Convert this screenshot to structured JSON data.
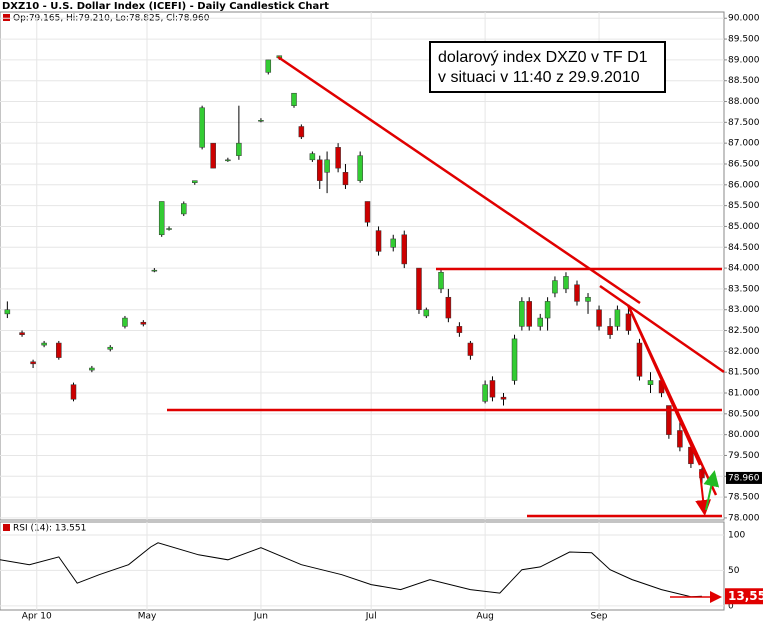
{
  "chart_data": {
    "type": "candlestick",
    "title": "DXZ10 - U.S. Dollar Index (ICEFI) - Daily Candlestick Chart",
    "legend_text": "Op:79.165, Hi:79.210, Lo:78.825, Cl:78.960",
    "annotation": [
      "dolarový index DXZ0 v TF D1",
      "v situaci v 11:40 z 29.9.2010"
    ],
    "up_color": "#33cc33",
    "down_color": "#cc0000",
    "x": [
      "2010-03-24",
      "2010-03-28",
      "2010-03-31",
      "2010-04-03",
      "2010-04-07",
      "2010-04-11",
      "2010-04-16",
      "2010-04-21",
      "2010-04-25",
      "2010-04-30",
      "2010-05-03",
      "2010-05-05",
      "2010-05-07",
      "2010-05-11",
      "2010-05-14",
      "2010-05-16",
      "2010-05-19",
      "2010-05-23",
      "2010-05-26",
      "2010-06-01",
      "2010-06-03",
      "2010-06-06",
      "2010-06-10",
      "2010-06-12",
      "2010-06-15",
      "2010-06-17",
      "2010-06-19",
      "2010-06-22",
      "2010-06-24",
      "2010-06-28",
      "2010-06-30",
      "2010-07-03",
      "2010-07-07",
      "2010-07-10",
      "2010-07-14",
      "2010-07-16",
      "2010-07-20",
      "2010-07-22",
      "2010-07-25",
      "2010-07-28",
      "2010-08-01",
      "2010-08-03",
      "2010-08-06",
      "2010-08-09",
      "2010-08-11",
      "2010-08-13",
      "2010-08-16",
      "2010-08-18",
      "2010-08-20",
      "2010-08-23",
      "2010-08-26",
      "2010-08-29",
      "2010-09-01",
      "2010-09-04",
      "2010-09-06",
      "2010-09-09",
      "2010-09-12",
      "2010-09-15",
      "2010-09-18",
      "2010-09-20",
      "2010-09-23",
      "2010-09-26",
      "2010-09-29"
    ],
    "open": [
      82.9,
      82.45,
      81.75,
      82.15,
      82.2,
      81.2,
      81.55,
      82.05,
      82.6,
      82.7,
      83.95,
      84.8,
      84.95,
      85.3,
      86.05,
      86.9,
      87.0,
      86.6,
      86.7,
      87.55,
      88.7,
      89.05,
      87.9,
      87.4,
      86.6,
      86.6,
      86.3,
      86.9,
      86.3,
      86.1,
      85.6,
      84.9,
      84.5,
      84.8,
      84.0,
      82.85,
      83.5,
      83.3,
      82.6,
      82.2,
      80.8,
      81.3,
      80.9,
      81.3,
      82.6,
      83.2,
      82.6,
      82.8,
      83.4,
      83.5,
      83.6,
      83.2,
      83.0,
      82.6,
      82.6,
      82.9,
      82.2,
      81.2,
      81.3,
      80.7,
      80.1,
      79.7,
      79.165
    ],
    "high": [
      83.2,
      82.5,
      81.8,
      82.25,
      82.25,
      81.25,
      81.65,
      82.15,
      82.85,
      82.75,
      84.0,
      85.6,
      85.0,
      85.6,
      86.1,
      87.9,
      87.0,
      86.65,
      87.9,
      87.6,
      89.0,
      89.1,
      88.2,
      87.45,
      86.8,
      86.7,
      86.8,
      87.0,
      86.5,
      86.8,
      85.6,
      85.0,
      84.8,
      84.9,
      84.0,
      83.05,
      84.0,
      83.5,
      82.7,
      82.25,
      81.3,
      81.4,
      81.0,
      82.4,
      83.3,
      83.3,
      82.9,
      83.3,
      83.8,
      83.9,
      83.7,
      83.4,
      83.1,
      82.8,
      83.1,
      83.1,
      82.3,
      81.5,
      81.4,
      80.7,
      80.3,
      79.8,
      79.21
    ],
    "low": [
      82.8,
      82.35,
      81.6,
      82.1,
      81.8,
      80.8,
      81.5,
      82.0,
      82.55,
      82.6,
      83.9,
      84.75,
      84.9,
      85.25,
      86.0,
      86.85,
      86.4,
      86.55,
      86.6,
      87.5,
      88.65,
      89.0,
      87.85,
      87.1,
      86.55,
      85.9,
      85.8,
      86.3,
      85.9,
      86.05,
      85.0,
      84.3,
      84.4,
      84.0,
      82.9,
      82.8,
      83.4,
      82.7,
      82.35,
      81.8,
      80.75,
      80.8,
      80.7,
      81.2,
      82.5,
      82.5,
      82.5,
      82.5,
      83.3,
      83.4,
      83.1,
      82.9,
      82.5,
      82.3,
      82.5,
      82.4,
      81.3,
      81.0,
      80.9,
      79.9,
      79.6,
      79.2,
      78.825
    ],
    "close": [
      83.0,
      82.4,
      81.7,
      82.2,
      81.85,
      80.85,
      81.6,
      82.1,
      82.8,
      82.65,
      83.95,
      85.6,
      84.95,
      85.55,
      86.1,
      87.85,
      86.4,
      86.6,
      87.0,
      87.55,
      89.0,
      89.1,
      88.2,
      87.15,
      86.75,
      86.1,
      86.6,
      86.4,
      86.0,
      86.7,
      85.1,
      84.4,
      84.7,
      84.1,
      83.0,
      83.0,
      83.9,
      82.8,
      82.45,
      81.9,
      81.2,
      80.9,
      80.85,
      82.3,
      83.2,
      82.6,
      82.8,
      83.2,
      83.7,
      83.8,
      83.2,
      83.3,
      82.6,
      82.4,
      83.0,
      82.5,
      81.4,
      81.3,
      81.0,
      80.0,
      79.7,
      79.3,
      78.96
    ],
    "xlim": [
      "2010-03-22",
      "2010-10-05"
    ],
    "xticks": [
      {
        "value": "2010-04-01",
        "label": "Apr 10"
      },
      {
        "value": "2010-05-01",
        "label": "May"
      },
      {
        "value": "2010-06-01",
        "label": "Jun"
      },
      {
        "value": "2010-07-01",
        "label": "Jul"
      },
      {
        "value": "2010-08-01",
        "label": "Aug"
      },
      {
        "value": "2010-09-01",
        "label": "Sep"
      }
    ],
    "ylim": [
      77.95,
      90.15
    ],
    "yticks": [
      {
        "value": 78,
        "label": "78.000"
      },
      {
        "value": 78.5,
        "label": "78.500"
      },
      {
        "value": 79,
        "label": "79.000"
      },
      {
        "value": 79.5,
        "label": "79.500"
      },
      {
        "value": 80,
        "label": "80.000"
      },
      {
        "value": 80.5,
        "label": "80.500"
      },
      {
        "value": 81,
        "label": "81.000"
      },
      {
        "value": 81.5,
        "label": "81.500"
      },
      {
        "value": 82,
        "label": "82.000"
      },
      {
        "value": 82.5,
        "label": "82.500"
      },
      {
        "value": 83,
        "label": "83.000"
      },
      {
        "value": 83.5,
        "label": "83.500"
      },
      {
        "value": 84,
        "label": "84.000"
      },
      {
        "value": 84.5,
        "label": "84.500"
      },
      {
        "value": 85,
        "label": "85.000"
      },
      {
        "value": 85.5,
        "label": "85.500"
      },
      {
        "value": 86,
        "label": "86.000"
      },
      {
        "value": 86.5,
        "label": "86.500"
      },
      {
        "value": 87,
        "label": "87.000"
      },
      {
        "value": 87.5,
        "label": "87.500"
      },
      {
        "value": 88,
        "label": "88.000"
      },
      {
        "value": 88.5,
        "label": "88.500"
      },
      {
        "value": 89,
        "label": "89.000"
      },
      {
        "value": 89.5,
        "label": "89.500"
      },
      {
        "value": 90,
        "label": "90.000"
      }
    ],
    "last_price": {
      "value": 78.96,
      "label": "78.960"
    },
    "rsi": {
      "title": "RSI (14): 13.551",
      "color": "#000000",
      "x": [
        "2010-03-22",
        "2010-03-30",
        "2010-04-07",
        "2010-04-12",
        "2010-04-18",
        "2010-04-26",
        "2010-05-02",
        "2010-05-04",
        "2010-05-15",
        "2010-05-23",
        "2010-06-01",
        "2010-06-12",
        "2010-06-23",
        "2010-07-01",
        "2010-07-09",
        "2010-07-17",
        "2010-07-28",
        "2010-08-05",
        "2010-08-11",
        "2010-08-16",
        "2010-08-24",
        "2010-08-30",
        "2010-09-04",
        "2010-09-10",
        "2010-09-18",
        "2010-09-26",
        "2010-09-29"
      ],
      "values": [
        65,
        58,
        69,
        32,
        44,
        58,
        83,
        89,
        72,
        65,
        82,
        58,
        44,
        30,
        23,
        37,
        23,
        18,
        51,
        55,
        76,
        75,
        51,
        37,
        23,
        13,
        13.551
      ],
      "ylim": [
        -3,
        107
      ],
      "yticks": [
        0,
        50,
        100
      ],
      "last": {
        "value": 13.55,
        "label": "13,55"
      }
    }
  }
}
